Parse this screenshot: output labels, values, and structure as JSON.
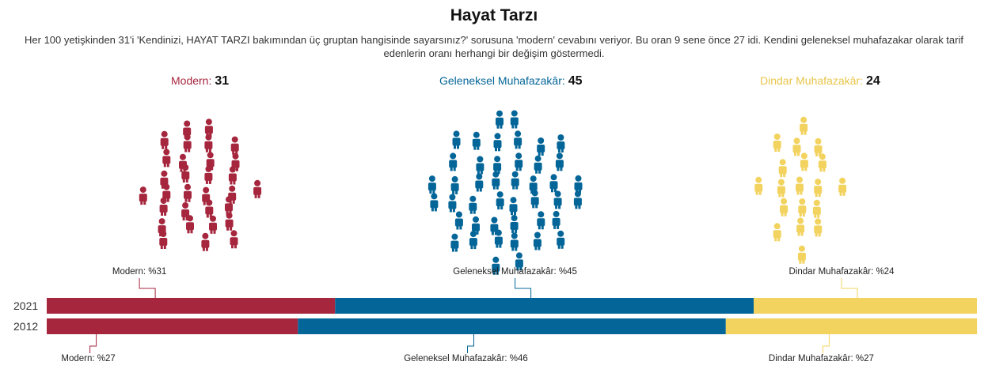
{
  "title": "Hayat Tarzı",
  "subtitle": "Her 100 yetişkinden 31'i 'Kendinizi, HAYAT TARZI bakımından üç gruptan hangisinde sayarsınız?' sorusuna 'modern' cevabını veriyor. Bu oran 9 sene önce 27 idi. Kendini geleneksel muhafazakar olarak tarif edenlerin oranı herhangi bir değişim göstermedi.",
  "groups": [
    {
      "label": "Modern:",
      "value": "31",
      "color": "#A6263E"
    },
    {
      "label": "Geleneksel Muhafazakâr:",
      "value": "45",
      "color": "#046698"
    },
    {
      "label": "Dindar Muhafazakâr:",
      "value": "24",
      "color": "#F3D35F"
    }
  ],
  "chart_data": {
    "type": "bar",
    "stacked": true,
    "orientation": "horizontal",
    "categories": [
      "2021",
      "2012"
    ],
    "series": [
      {
        "name": "Modern",
        "color": "#A6263E",
        "values": [
          31,
          27
        ]
      },
      {
        "name": "Geleneksel Muhafazakâr",
        "color": "#046698",
        "values": [
          45,
          46
        ]
      },
      {
        "name": "Dindar Muhafazakâr",
        "color": "#F3D35F",
        "values": [
          24,
          27
        ]
      }
    ],
    "labels_2021": [
      "Modern: %31",
      "Geleneksel Muhafazakâr: %45",
      "Dindar Muhafazakâr: %24"
    ],
    "labels_2012": [
      "Modern: %27",
      "Geleneksel Muhafazakâr: %46",
      "Dindar Muhafazakâr: %27"
    ],
    "xlim": [
      0,
      100
    ]
  }
}
